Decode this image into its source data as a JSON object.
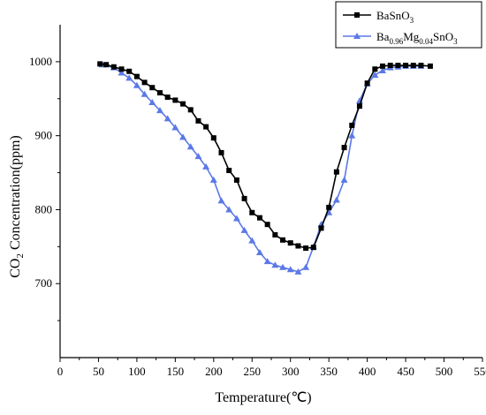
{
  "chart_data": {
    "type": "line",
    "xlabel": "Temperature(℃)",
    "ylabel_main": "CO",
    "ylabel_sub": "2",
    "ylabel_rest": " Concentration(ppm)",
    "xlim": [
      0,
      550
    ],
    "ylim": [
      600,
      1050
    ],
    "xticks": [
      0,
      50,
      100,
      150,
      200,
      250,
      300,
      350,
      400,
      450,
      500,
      550
    ],
    "yticks": [
      700,
      800,
      900,
      1000
    ],
    "legend": {
      "position": "top-right",
      "entries": [
        {
          "series_index": 0,
          "parts": [
            [
              "Ba",
              "n"
            ],
            [
              "Sn",
              "n"
            ],
            [
              "O",
              "n"
            ],
            [
              "3",
              "sub"
            ]
          ]
        },
        {
          "series_index": 1,
          "parts": [
            [
              "Ba",
              "n"
            ],
            [
              "0.96",
              "sub"
            ],
            [
              "Mg",
              "n"
            ],
            [
              "0.04",
              "sub"
            ],
            [
              "SnO",
              "n"
            ],
            [
              "3",
              "sub"
            ]
          ]
        }
      ]
    },
    "series": [
      {
        "name": "BaSnO3",
        "color": "#000000",
        "marker": "square",
        "x": [
          52,
          60,
          70,
          80,
          90,
          100,
          110,
          120,
          130,
          140,
          150,
          160,
          170,
          180,
          190,
          200,
          210,
          220,
          230,
          240,
          250,
          260,
          270,
          280,
          290,
          300,
          310,
          320,
          330,
          340,
          350,
          360,
          370,
          380,
          390,
          400,
          410,
          420,
          430,
          440,
          450,
          460,
          470,
          482
        ],
        "y": [
          997,
          996,
          993,
          990,
          987,
          980,
          972,
          965,
          958,
          952,
          948,
          943,
          935,
          920,
          912,
          897,
          877,
          853,
          840,
          815,
          796,
          789,
          780,
          766,
          759,
          755,
          751,
          748,
          749,
          775,
          803,
          851,
          884,
          914,
          940,
          971,
          990,
          994,
          995,
          995,
          995,
          995,
          995,
          994
        ]
      },
      {
        "name": "Ba0.96Mg0.04SnO3",
        "color": "#5B79E6",
        "marker": "triangle",
        "x": [
          55,
          70,
          80,
          90,
          100,
          110,
          120,
          130,
          140,
          150,
          160,
          170,
          180,
          190,
          200,
          210,
          220,
          230,
          240,
          250,
          260,
          270,
          280,
          290,
          300,
          310,
          320,
          330,
          340,
          350,
          360,
          370,
          380,
          390,
          400,
          410,
          420,
          430,
          440,
          450,
          460,
          470
        ],
        "y": [
          996,
          992,
          985,
          978,
          968,
          956,
          945,
          934,
          923,
          911,
          898,
          885,
          872,
          858,
          840,
          812,
          800,
          788,
          772,
          758,
          742,
          730,
          725,
          722,
          719,
          716,
          722,
          750,
          780,
          796,
          813,
          840,
          900,
          947,
          970,
          982,
          988,
          992,
          993,
          994,
          994,
          994
        ]
      }
    ]
  }
}
